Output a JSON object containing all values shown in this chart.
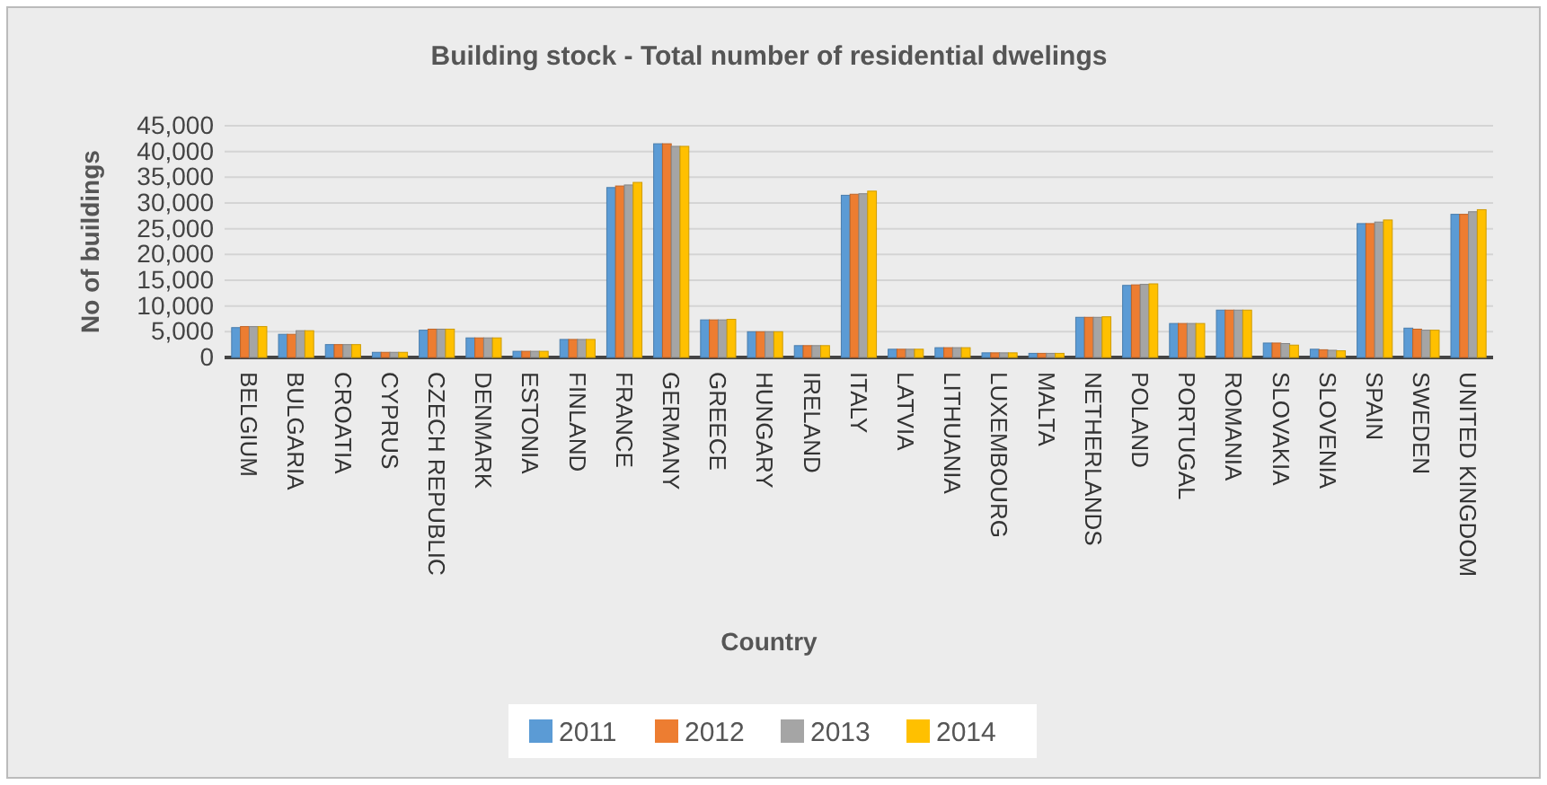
{
  "chart_data": {
    "type": "bar",
    "title": "Building stock - Total number of residential dwelings",
    "xlabel": "Country",
    "ylabel": "No of buildings",
    "categories": [
      "BELGIUM",
      "BULGARIA",
      "CROATIA",
      "CYPRUS",
      "CZECH REPUBLIC",
      "DENMARK",
      "ESTONIA",
      "FINLAND",
      "FRANCE",
      "GERMANY",
      "GREECE",
      "HUNGARY",
      "IRELAND",
      "ITALY",
      "LATVIA",
      "LITHUANIA",
      "LUXEMBOURG",
      "MALTA",
      "NETHERLANDS",
      "POLAND",
      "PORTUGAL",
      "ROMANIA",
      "SLOVAKIA",
      "SLOVENIA",
      "SPAIN",
      "SWEDEN",
      "UNITED KINGDOM"
    ],
    "series": [
      {
        "name": "2011",
        "color": "#5b9bd5",
        "values": [
          5800,
          4500,
          2500,
          1000,
          5300,
          3800,
          1200,
          3500,
          33000,
          41500,
          7300,
          5000,
          2300,
          31500,
          1600,
          1900,
          900,
          800,
          7800,
          14000,
          6600,
          9200,
          2800,
          1600,
          26000,
          5700,
          27800
        ]
      },
      {
        "name": "2012",
        "color": "#ed7d31",
        "values": [
          6000,
          4500,
          2500,
          1000,
          5500,
          3800,
          1200,
          3500,
          33300,
          41500,
          7300,
          5000,
          2300,
          31700,
          1600,
          1900,
          900,
          800,
          7800,
          14100,
          6600,
          9200,
          2800,
          1500,
          26000,
          5500,
          27800
        ]
      },
      {
        "name": "2013",
        "color": "#a5a5a5",
        "values": [
          6000,
          5200,
          2500,
          1000,
          5500,
          3800,
          1200,
          3500,
          33500,
          41000,
          7300,
          5000,
          2300,
          31800,
          1600,
          1900,
          900,
          800,
          7800,
          14200,
          6600,
          9200,
          2700,
          1400,
          26300,
          5300,
          28300
        ]
      },
      {
        "name": "2014",
        "color": "#ffc000",
        "values": [
          6000,
          5200,
          2500,
          1000,
          5500,
          3800,
          1200,
          3500,
          34000,
          41000,
          7400,
          5000,
          2300,
          32300,
          1600,
          1900,
          900,
          800,
          7900,
          14300,
          6600,
          9200,
          2400,
          1300,
          26700,
          5300,
          28700
        ]
      }
    ],
    "ylim": [
      0,
      45000
    ],
    "yticks": [
      {
        "value": 0,
        "label": "0"
      },
      {
        "value": 5000,
        "label": "5,000"
      },
      {
        "value": 10000,
        "label": "10,000"
      },
      {
        "value": 15000,
        "label": "15,000"
      },
      {
        "value": 20000,
        "label": "20,000"
      },
      {
        "value": 25000,
        "label": "25,000"
      },
      {
        "value": 30000,
        "label": "30,000"
      },
      {
        "value": 35000,
        "label": "35,000"
      },
      {
        "value": 40000,
        "label": "40,000"
      },
      {
        "value": 45000,
        "label": "45,000"
      }
    ],
    "grid": "y",
    "legend": "bottom"
  }
}
